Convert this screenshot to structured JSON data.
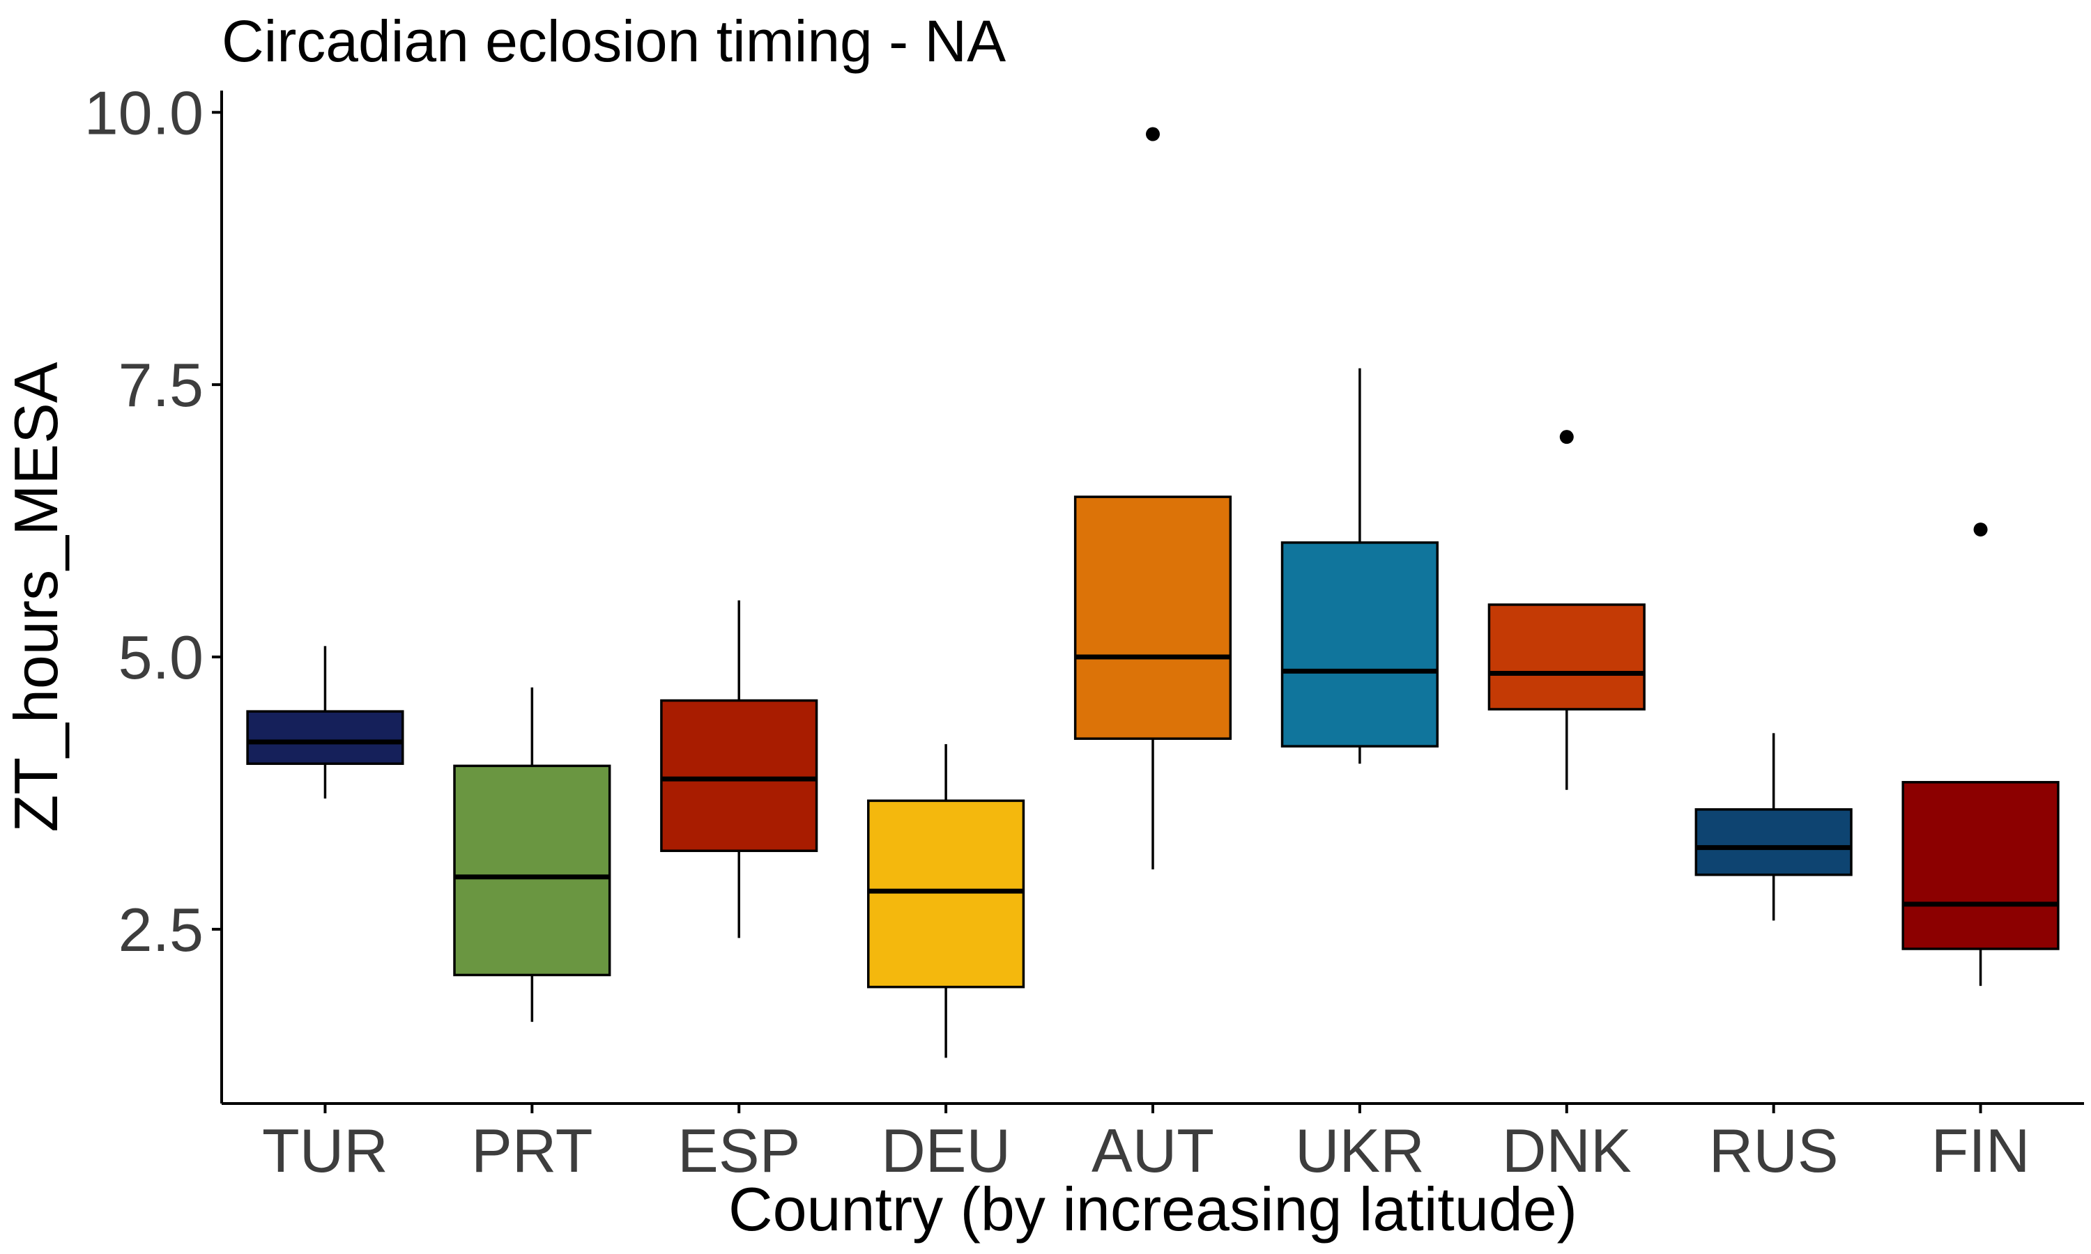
{
  "chart_data": {
    "type": "boxplot",
    "title": "Circadian eclosion timing - NA",
    "xlabel": "Country (by increasing latitude)",
    "ylabel": "ZT_hours_MESA",
    "ylim": [
      0.9,
      10.2
    ],
    "yticks": [
      2.5,
      5.0,
      7.5,
      10.0
    ],
    "ytick_labels": [
      "2.5",
      "5.0",
      "7.5",
      "10.0"
    ],
    "grid": false,
    "legend": "none",
    "categories": [
      "TUR",
      "PRT",
      "ESP",
      "DEU",
      "AUT",
      "UKR",
      "DNK",
      "RUS",
      "FIN"
    ],
    "boxes": [
      {
        "category": "TUR",
        "whisker_low": 3.7,
        "q1": 4.02,
        "median": 4.22,
        "q3": 4.5,
        "whisker_high": 5.1,
        "outliers": [],
        "color": "#15205a"
      },
      {
        "category": "PRT",
        "whisker_low": 1.65,
        "q1": 2.08,
        "median": 2.98,
        "q3": 4.0,
        "whisker_high": 4.72,
        "outliers": [],
        "color": "#6a9641"
      },
      {
        "category": "ESP",
        "whisker_low": 2.42,
        "q1": 3.22,
        "median": 3.88,
        "q3": 4.6,
        "whisker_high": 5.52,
        "outliers": [],
        "color": "#a81c00"
      },
      {
        "category": "DEU",
        "whisker_low": 1.32,
        "q1": 1.97,
        "median": 2.85,
        "q3": 3.68,
        "whisker_high": 4.2,
        "outliers": [],
        "color": "#f4b80d"
      },
      {
        "category": "AUT",
        "whisker_low": 3.05,
        "q1": 4.25,
        "median": 5.0,
        "q3": 6.47,
        "whisker_high": 6.47,
        "outliers": [
          9.8
        ],
        "color": "#dc7308"
      },
      {
        "category": "UKR",
        "whisker_low": 4.02,
        "q1": 4.18,
        "median": 4.87,
        "q3": 6.05,
        "whisker_high": 7.65,
        "outliers": [],
        "color": "#10759c"
      },
      {
        "category": "DNK",
        "whisker_low": 3.78,
        "q1": 4.52,
        "median": 4.85,
        "q3": 5.48,
        "whisker_high": 5.48,
        "outliers": [
          7.02
        ],
        "color": "#c43a05"
      },
      {
        "category": "RUS",
        "whisker_low": 2.58,
        "q1": 3.0,
        "median": 3.25,
        "q3": 3.6,
        "whisker_high": 4.3,
        "outliers": [],
        "color": "#0e4471"
      },
      {
        "category": "FIN",
        "whisker_low": 1.98,
        "q1": 2.32,
        "median": 2.73,
        "q3": 3.85,
        "whisker_high": 3.85,
        "outliers": [
          6.17
        ],
        "color": "#8c0000"
      }
    ]
  }
}
